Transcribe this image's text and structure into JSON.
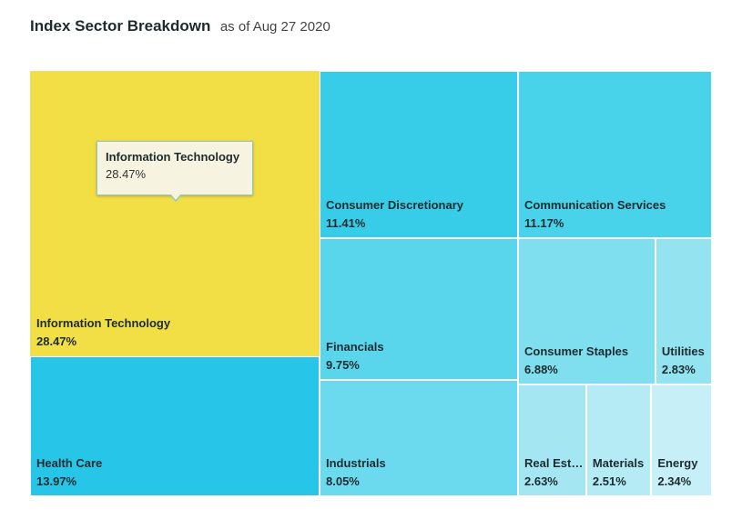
{
  "header": {
    "title": "Index Sector Breakdown",
    "subtitle": "as of Aug 27 2020"
  },
  "tooltip": {
    "name": "Information Technology",
    "value": "28.47%"
  },
  "chart_data": {
    "type": "treemap",
    "title": "Index Sector Breakdown",
    "subtitle": "as of Aug 27 2020",
    "unit": "%",
    "highlighted": "Information Technology",
    "items": [
      {
        "name": "Information Technology",
        "label": "Information Technology",
        "value": 28.47,
        "value_label": "28.47%",
        "color": "#f2df46"
      },
      {
        "name": "Health Care",
        "label": "Health Care",
        "value": 13.97,
        "value_label": "13.97%",
        "color": "#27c6e8"
      },
      {
        "name": "Consumer Discretionary",
        "label": "Consumer Discretionary",
        "value": 11.41,
        "value_label": "11.41%",
        "color": "#37cde8"
      },
      {
        "name": "Communication Services",
        "label": "Communication Services",
        "value": 11.17,
        "value_label": "11.17%",
        "color": "#48d3ea"
      },
      {
        "name": "Financials",
        "label": "Financials",
        "value": 9.75,
        "value_label": "9.75%",
        "color": "#5ad6ec"
      },
      {
        "name": "Industrials",
        "label": "Industrials",
        "value": 8.05,
        "value_label": "8.05%",
        "color": "#6cdaee"
      },
      {
        "name": "Consumer Staples",
        "label": "Consumer Staples",
        "value": 6.88,
        "value_label": "6.88%",
        "color": "#7fdfef"
      },
      {
        "name": "Utilities",
        "label": "Utilities",
        "value": 2.83,
        "value_label": "2.83%",
        "color": "#93e3f1"
      },
      {
        "name": "Real Estate",
        "label": "Real Esta...",
        "value": 2.63,
        "value_label": "2.63%",
        "color": "#a4e7f3"
      },
      {
        "name": "Materials",
        "label": "Materials",
        "value": 2.51,
        "value_label": "2.51%",
        "color": "#b5ebf5"
      },
      {
        "name": "Energy",
        "label": "Energy",
        "value": 2.34,
        "value_label": "2.34%",
        "color": "#c6eff7"
      }
    ]
  }
}
